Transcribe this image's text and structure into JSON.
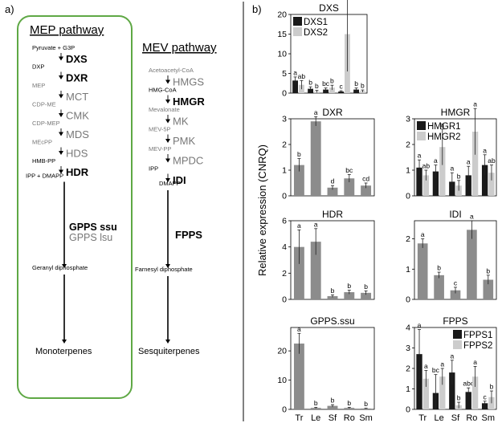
{
  "colors": {
    "mep_box": "#5fa845",
    "enzyme_bold": "#000000",
    "enzyme_grey": "#777777",
    "bar_dark": "#1a1a1a",
    "bar_light": "#cccccc",
    "bar_mid": "#8c8c8c"
  },
  "panel_a": {
    "label": "a)",
    "mep": {
      "title": "MEP pathway",
      "steps": [
        {
          "metabolite": "Pyruvate + G3P",
          "enzyme": "DXS",
          "bold": true
        },
        {
          "metabolite": "DXP",
          "enzyme": "DXR",
          "bold": true
        },
        {
          "metabolite": "MEP",
          "enzyme": "MCT",
          "bold": false
        },
        {
          "metabolite": "CDP-ME",
          "enzyme": "CMK",
          "bold": false
        },
        {
          "metabolite": "CDP-MEP",
          "enzyme": "MDS",
          "bold": false
        },
        {
          "metabolite": "MEcPP",
          "enzyme": "HDS",
          "bold": false
        },
        {
          "metabolite": "HMB-PP",
          "enzyme": "HDR",
          "bold": true
        }
      ],
      "after_hdr": "IPP + DMAPP",
      "gpps_ssu": "GPPS ssu",
      "gpps_lsu": "GPPS lsu",
      "product": "Geranyl diphosphate",
      "final": "Monoterpenes"
    },
    "mev": {
      "title": "MEV pathway",
      "steps": [
        {
          "metabolite": "Acetoacetyl-CoA",
          "enzyme": "HMGS",
          "bold": false
        },
        {
          "metabolite": "HMG-CoA",
          "enzyme": "HMGR",
          "bold": true
        },
        {
          "metabolite": "Mevalonate",
          "enzyme": "MK",
          "bold": false
        },
        {
          "metabolite": "MEV-5P",
          "enzyme": "PMK",
          "bold": false
        },
        {
          "metabolite": "MEV-PP",
          "enzyme": "MPDC",
          "bold": false
        },
        {
          "metabolite": "IPP",
          "enzyme": "IDI",
          "bold": true
        }
      ],
      "after_idi": "DMAPP",
      "fpps": "FPPS",
      "product": "Farnesyl diphosphate",
      "final": "Sesquiterpenes"
    }
  },
  "panel_b": {
    "label": "b)",
    "ylabel": "Relative expression (CNRQ)"
  },
  "chart_data": [
    {
      "type": "bar",
      "title": "DXS",
      "categories": [
        "Tr",
        "Le",
        "Sf",
        "Ro",
        "Sm"
      ],
      "series": [
        {
          "name": "DXS1",
          "values": [
            3.2,
            1.1,
            0.9,
            0.4,
            0.9
          ],
          "errors": [
            0.9,
            0.5,
            0.4,
            0.2,
            0.4
          ],
          "letters": [
            "a",
            "b",
            "bc",
            "c",
            "b"
          ]
        },
        {
          "name": "DXS2",
          "values": [
            2.1,
            0.4,
            1.4,
            15,
            0.5
          ],
          "errors": [
            1.1,
            0.3,
            0.6,
            9.5,
            0.3
          ],
          "letters": [
            "ab",
            "b",
            "b",
            "a",
            "b"
          ]
        }
      ],
      "ylim": [
        0,
        20
      ],
      "yticks": [
        0,
        5,
        10,
        15,
        20
      ],
      "legend": "top-left"
    },
    {
      "type": "bar",
      "title": "DXR",
      "categories": [
        "Tr",
        "Le",
        "Sf",
        "Ro",
        "Sm"
      ],
      "series": [
        {
          "values": [
            1.2,
            2.9,
            0.32,
            0.68,
            0.4
          ],
          "errors": [
            0.25,
            0.18,
            0.08,
            0.15,
            0.1
          ],
          "letters": [
            "b",
            "a",
            "d",
            "bc",
            "cd"
          ]
        }
      ],
      "ylim": [
        0,
        3
      ],
      "yticks": [
        0,
        1,
        2,
        3
      ]
    },
    {
      "type": "bar",
      "title": "HMGR",
      "categories": [
        "Tr",
        "Le",
        "Sf",
        "Ro",
        "Sm"
      ],
      "series": [
        {
          "name": "HMGR1",
          "values": [
            1.1,
            0.95,
            0.55,
            0.8,
            1.2
          ],
          "errors": [
            0.3,
            0.25,
            0.35,
            0.35,
            0.4
          ],
          "letters": [
            "a",
            "a",
            "a",
            "a",
            "a"
          ]
        },
        {
          "name": "HMGR2",
          "values": [
            0.8,
            1.9,
            0.4,
            2.5,
            0.9
          ],
          "errors": [
            0.2,
            0.7,
            0.2,
            0.9,
            0.3
          ],
          "letters": [
            "ab",
            "a",
            "b",
            "a",
            "ab"
          ]
        }
      ],
      "ylim": [
        0,
        3
      ],
      "yticks": [
        0,
        1,
        2,
        3
      ],
      "legend": "top-left"
    },
    {
      "type": "bar",
      "title": "HDR",
      "categories": [
        "Tr",
        "Le",
        "Sf",
        "Ro",
        "Sm"
      ],
      "series": [
        {
          "values": [
            4.0,
            4.4,
            0.25,
            0.55,
            0.5
          ],
          "errors": [
            1.3,
            1.0,
            0.1,
            0.15,
            0.15
          ],
          "letters": [
            "a",
            "a",
            "b",
            "b",
            "b"
          ]
        }
      ],
      "ylim": [
        0,
        6
      ],
      "yticks": [
        0,
        2,
        4,
        6
      ]
    },
    {
      "type": "bar",
      "title": "IDI",
      "categories": [
        "Tr",
        "Le",
        "Sf",
        "Ro",
        "Sm"
      ],
      "series": [
        {
          "values": [
            1.85,
            0.8,
            0.3,
            2.3,
            0.65
          ],
          "errors": [
            0.15,
            0.1,
            0.1,
            0.3,
            0.15
          ],
          "letters": [
            "a",
            "b",
            "c",
            "a",
            "b"
          ]
        }
      ],
      "ylim": [
        0,
        2.6
      ],
      "yticks": [
        0,
        1,
        2
      ]
    },
    {
      "type": "bar",
      "title": "GPPS.ssu",
      "categories": [
        "Tr",
        "Le",
        "Sf",
        "Ro",
        "Sm"
      ],
      "series": [
        {
          "values": [
            22.5,
            0.5,
            1.2,
            0.5,
            0.3
          ],
          "errors": [
            3.5,
            0.2,
            0.4,
            0.2,
            0.1
          ],
          "letters": [
            "a",
            "b",
            "b",
            "b",
            "b"
          ]
        }
      ],
      "ylim": [
        0,
        28
      ],
      "yticks": [
        0,
        10,
        20
      ]
    },
    {
      "type": "bar",
      "title": "FPPS",
      "categories": [
        "Tr",
        "Le",
        "Sf",
        "Ro",
        "Sm"
      ],
      "series": [
        {
          "name": "FPPS1",
          "values": [
            2.7,
            0.8,
            1.8,
            0.85,
            0.3
          ],
          "errors": [
            1.2,
            0.9,
            0.6,
            0.2,
            0.1
          ],
          "letters": [
            "a",
            "bc",
            "a",
            "abc",
            "c"
          ]
        },
        {
          "name": "FPPS2",
          "values": [
            1.5,
            1.6,
            0.2,
            1.6,
            0.6
          ],
          "errors": [
            0.4,
            0.4,
            0.15,
            0.5,
            0.3
          ],
          "letters": [
            "a",
            "a",
            "b",
            "a",
            "b"
          ]
        }
      ],
      "ylim": [
        0,
        4
      ],
      "yticks": [
        0,
        1,
        2,
        3,
        4
      ],
      "legend": "top-right"
    }
  ]
}
